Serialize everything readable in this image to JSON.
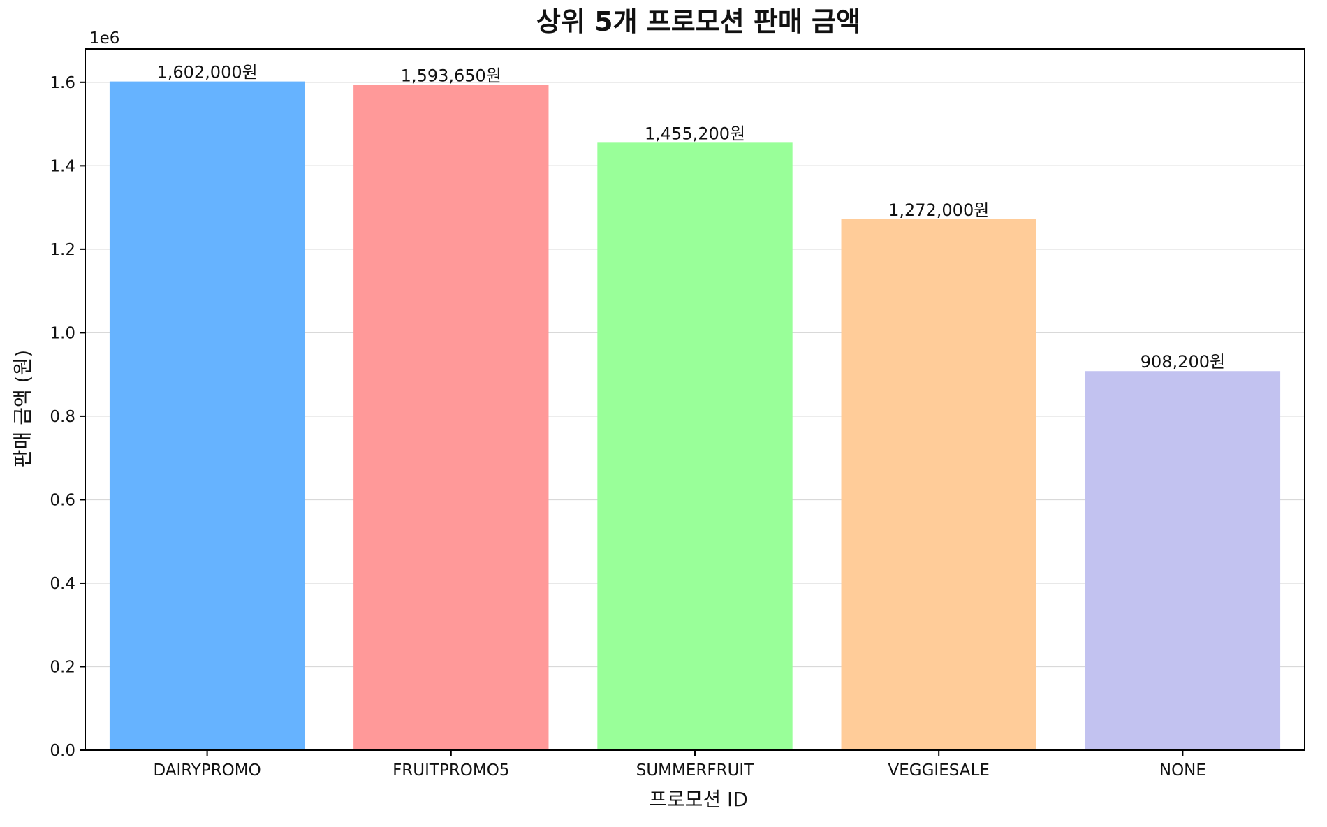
{
  "chart_data": {
    "type": "bar",
    "title": "상위 5개 프로모션 판매 금액",
    "xlabel": "프로모션 ID",
    "ylabel": "판매 금액 (원)",
    "y_offset_label": "1e6",
    "categories": [
      "DAIRYPROMO",
      "FRUITPROMO5",
      "SUMMERFRUIT",
      "VEGGIESALE",
      "NONE"
    ],
    "values": [
      1602000,
      1593650,
      1455200,
      1272000,
      908200
    ],
    "data_labels": [
      "1,602,000원",
      "1,593,650원",
      "1,455,200원",
      "1,272,000원",
      "908,200원"
    ],
    "colors": [
      "#66b3ff",
      "#ff9999",
      "#99ff99",
      "#ffcc99",
      "#c2c2f0"
    ],
    "ylim": [
      0,
      1680000
    ],
    "yticks": [
      0,
      200000,
      400000,
      600000,
      800000,
      1000000,
      1200000,
      1400000,
      1600000
    ],
    "ytick_labels": [
      "0.0",
      "0.2",
      "0.4",
      "0.6",
      "0.8",
      "1.0",
      "1.2",
      "1.4",
      "1.6"
    ],
    "grid": "horizontal",
    "legend": "none"
  }
}
